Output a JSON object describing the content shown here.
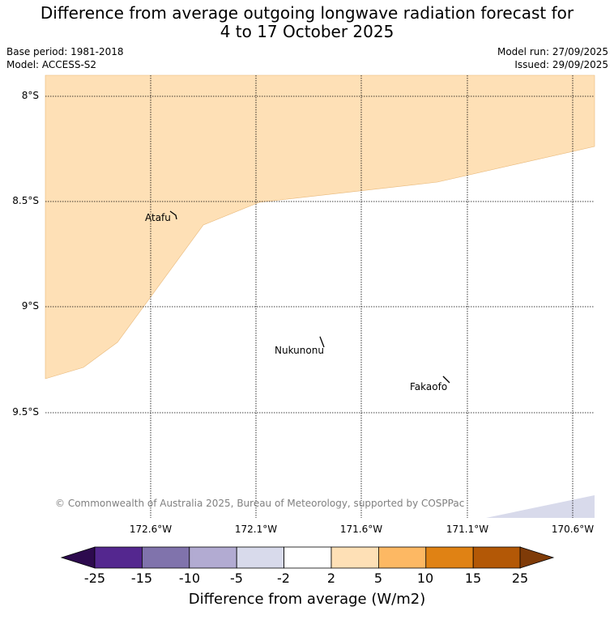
{
  "title": {
    "line1": "Difference from average outgoing longwave radiation forecast for",
    "line2": "4 to 17 October 2025"
  },
  "meta": {
    "base_period": "Base period: 1981-2018",
    "model": "Model: ACCESS-S2",
    "model_run": "Model run: 27/09/2025",
    "issued": "Issued: 29/09/2025"
  },
  "axes": {
    "lat_ticks": [
      "8°S",
      "8.5°S",
      "9°S",
      "9.5°S"
    ],
    "lon_ticks": [
      "172.6°W",
      "172.1°W",
      "171.6°W",
      "171.1°W",
      "170.6°W"
    ]
  },
  "places": [
    {
      "name": "Atafu"
    },
    {
      "name": "Nukunonu"
    },
    {
      "name": "Fakaofo"
    }
  ],
  "copyright": "© Commonwealth of Australia 2025, Bureau of Meteorology, supported by COSPPac",
  "colorbar": {
    "title": "Difference from average (W/m2)",
    "ticks": [
      "-25",
      "-15",
      "-10",
      "-5",
      "-2",
      "2",
      "5",
      "10",
      "15",
      "25"
    ],
    "colors": {
      "under": "#2d0a4e",
      "bins": [
        "#54278f",
        "#8073ac",
        "#b2abd2",
        "#d8daeb",
        "#ffffff",
        "#fee0b6",
        "#fdb863",
        "#e08214",
        "#b35806"
      ],
      "over": "#7f3b08"
    }
  }
}
